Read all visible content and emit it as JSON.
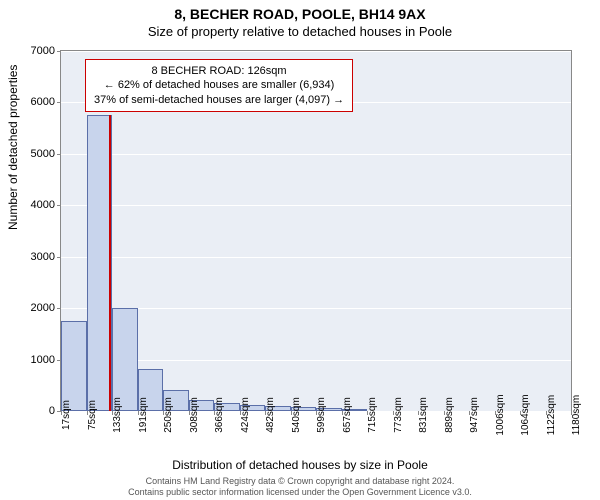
{
  "title": "8, BECHER ROAD, POOLE, BH14 9AX",
  "subtitle": "Size of property relative to detached houses in Poole",
  "ylabel": "Number of detached properties",
  "xlabel": "Distribution of detached houses by size in Poole",
  "footer_line1": "Contains HM Land Registry data © Crown copyright and database right 2024.",
  "footer_line2": "Contains public sector information licensed under the Open Government Licence v3.0.",
  "chart": {
    "type": "histogram",
    "background_color": "#eaeef5",
    "grid_color": "#ffffff",
    "border_color": "#888888",
    "bar_fill": "#c8d4ec",
    "bar_stroke": "#5b6fa8",
    "marker_color": "#cc0000",
    "ylim": [
      0,
      7000
    ],
    "yticks": [
      0,
      1000,
      2000,
      3000,
      4000,
      5000,
      6000,
      7000
    ],
    "xticks": [
      "17sqm",
      "75sqm",
      "133sqm",
      "191sqm",
      "250sqm",
      "308sqm",
      "366sqm",
      "424sqm",
      "482sqm",
      "540sqm",
      "599sqm",
      "657sqm",
      "715sqm",
      "773sqm",
      "831sqm",
      "889sqm",
      "947sqm",
      "1006sqm",
      "1064sqm",
      "1122sqm",
      "1180sqm"
    ],
    "bar_values": [
      1750,
      5750,
      2000,
      820,
      400,
      220,
      150,
      110,
      90,
      70,
      55,
      45,
      0,
      0,
      0,
      0,
      0,
      0,
      0,
      0
    ],
    "marker_bin_index": 1,
    "marker_fraction_in_bin": 0.9,
    "annotation": {
      "line1": "8 BECHER ROAD: 126sqm",
      "line2": "← 62% of detached houses are smaller (6,934)",
      "line3": "37% of semi-detached houses are larger (4,097) →",
      "border_color": "#cc0000",
      "background": "#ffffff",
      "fontsize": 11
    },
    "title_fontsize": 14,
    "subtitle_fontsize": 13,
    "axis_label_fontsize": 12,
    "tick_fontsize": 11,
    "xtick_fontsize": 10
  }
}
